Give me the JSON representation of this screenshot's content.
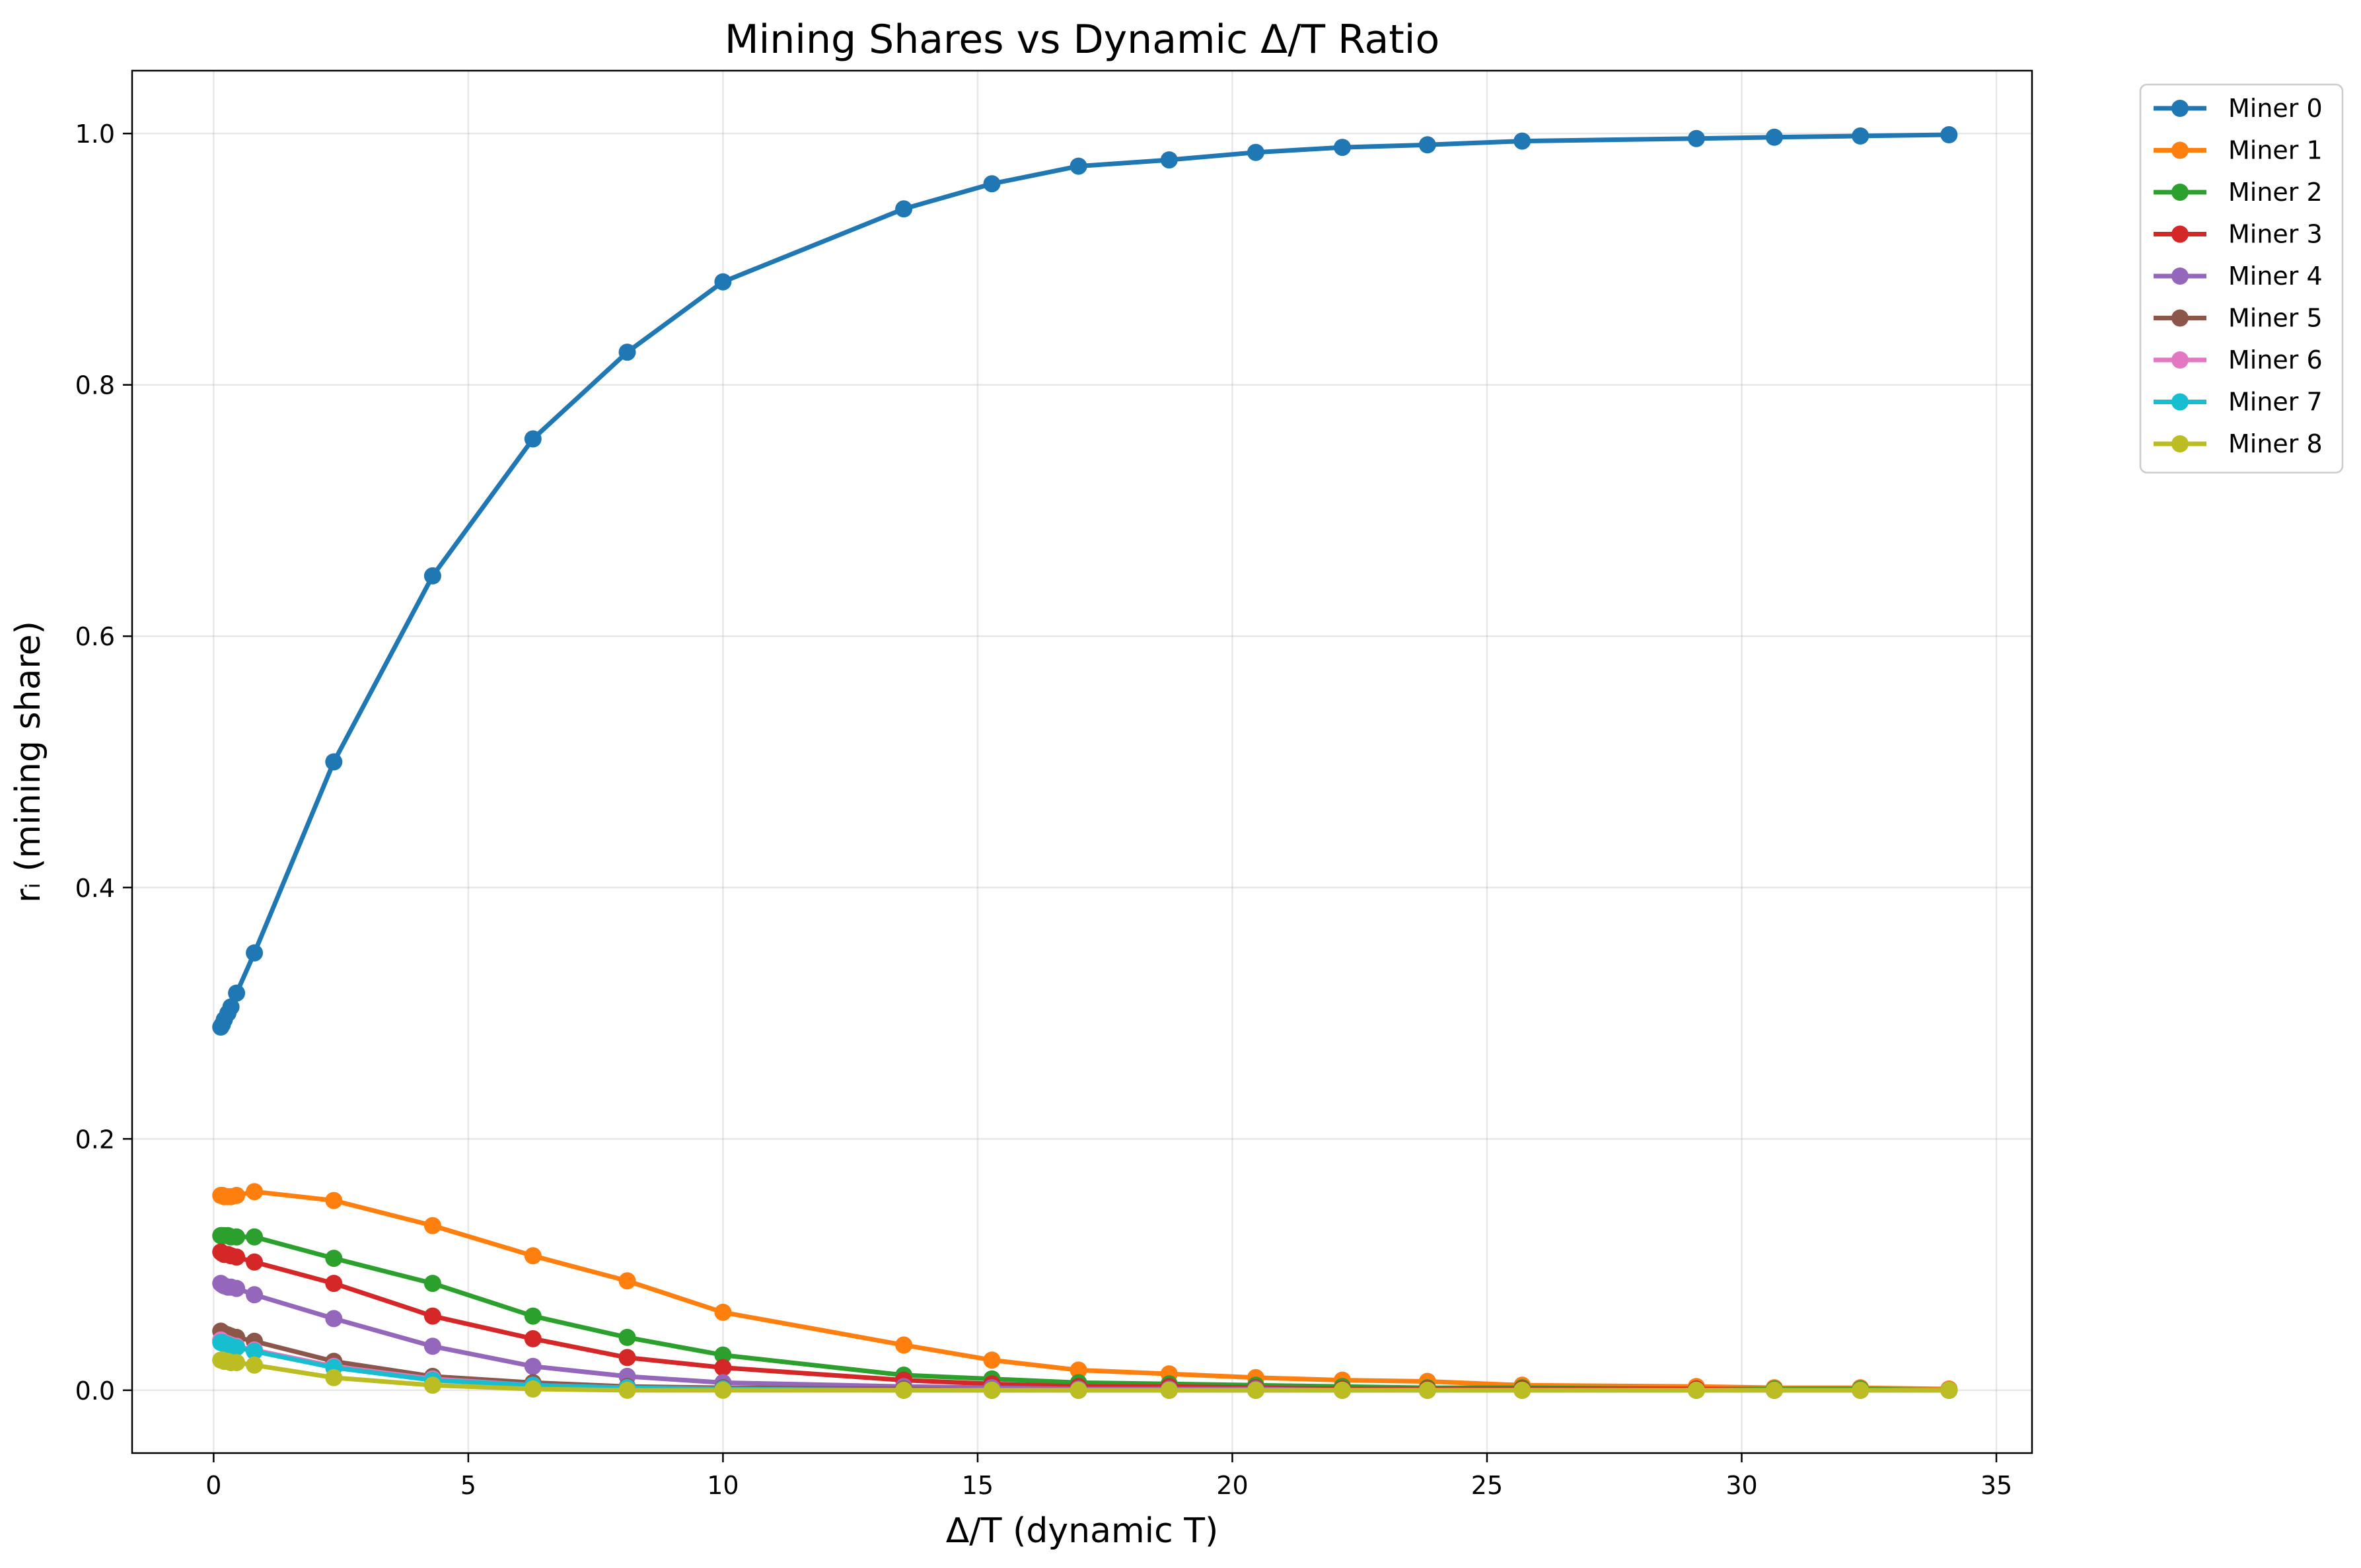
{
  "chart_data": {
    "type": "line",
    "title": "Mining Shares vs Dynamic Δ/T Ratio",
    "xlabel": "Δ/T (dynamic T)",
    "ylabel": "rᵢ (mining share)",
    "xlim": [
      -1.6,
      35.7
    ],
    "ylim": [
      -0.05,
      1.05
    ],
    "xticks": [
      0,
      5,
      10,
      15,
      20,
      25,
      30,
      35
    ],
    "xtick_labels": [
      "0",
      "5",
      "10",
      "15",
      "20",
      "25",
      "30",
      "35"
    ],
    "yticks": [
      0.0,
      0.2,
      0.4,
      0.6,
      0.8,
      1.0
    ],
    "ytick_labels": [
      "0.0",
      "0.2",
      "0.4",
      "0.6",
      "0.8",
      "1.0"
    ],
    "grid": true,
    "legend_position": "outside-top-right",
    "x": [
      0.14,
      0.17,
      0.21,
      0.28,
      0.34,
      0.45,
      0.8,
      2.36,
      4.3,
      6.27,
      8.12,
      10.0,
      13.55,
      15.28,
      16.98,
      18.76,
      20.46,
      22.16,
      23.83,
      25.69,
      29.11,
      30.64,
      32.33,
      34.07
    ],
    "series": [
      {
        "name": "Miner 0",
        "color": "#1f77b4",
        "values": [
          0.289,
          0.291,
          0.295,
          0.3,
          0.305,
          0.316,
          0.348,
          0.5,
          0.648,
          0.757,
          0.826,
          0.882,
          0.94,
          0.96,
          0.974,
          0.979,
          0.985,
          0.989,
          0.991,
          0.994,
          0.996,
          0.997,
          0.998,
          0.999
        ]
      },
      {
        "name": "Miner 1",
        "color": "#ff7f0e",
        "values": [
          0.155,
          0.155,
          0.154,
          0.154,
          0.154,
          0.155,
          0.158,
          0.151,
          0.131,
          0.107,
          0.087,
          0.062,
          0.036,
          0.024,
          0.016,
          0.013,
          0.01,
          0.008,
          0.007,
          0.004,
          0.003,
          0.002,
          0.002,
          0.001
        ]
      },
      {
        "name": "Miner 2",
        "color": "#2ca02c",
        "values": [
          0.123,
          0.123,
          0.123,
          0.123,
          0.122,
          0.122,
          0.122,
          0.105,
          0.085,
          0.059,
          0.042,
          0.028,
          0.012,
          0.009,
          0.006,
          0.005,
          0.004,
          0.003,
          0.002,
          0.002,
          0.001,
          0.001,
          0.001,
          0.0
        ]
      },
      {
        "name": "Miner 3",
        "color": "#d62728",
        "values": [
          0.11,
          0.109,
          0.108,
          0.108,
          0.107,
          0.106,
          0.102,
          0.085,
          0.059,
          0.041,
          0.026,
          0.018,
          0.008,
          0.005,
          0.003,
          0.003,
          0.002,
          0.001,
          0.001,
          0.001,
          0.001,
          0.0,
          0.0,
          0.0
        ]
      },
      {
        "name": "Miner 4",
        "color": "#9467bd",
        "values": [
          0.085,
          0.084,
          0.083,
          0.082,
          0.082,
          0.081,
          0.076,
          0.057,
          0.035,
          0.019,
          0.011,
          0.006,
          0.003,
          0.002,
          0.001,
          0.001,
          0.001,
          0.0,
          0.0,
          0.0,
          0.0,
          0.0,
          0.0,
          0.0
        ]
      },
      {
        "name": "Miner 5",
        "color": "#8c564b",
        "values": [
          0.047,
          0.046,
          0.045,
          0.044,
          0.043,
          0.042,
          0.039,
          0.023,
          0.011,
          0.006,
          0.003,
          0.002,
          0.001,
          0.0,
          0.0,
          0.0,
          0.0,
          0.0,
          0.0,
          0.0,
          0.0,
          0.0,
          0.0,
          0.0
        ]
      },
      {
        "name": "Miner 6",
        "color": "#e377c2",
        "values": [
          0.04,
          0.039,
          0.038,
          0.037,
          0.036,
          0.035,
          0.032,
          0.019,
          0.009,
          0.004,
          0.002,
          0.001,
          0.0,
          0.0,
          0.0,
          0.0,
          0.0,
          0.0,
          0.0,
          0.0,
          0.0,
          0.0,
          0.0,
          0.0
        ]
      },
      {
        "name": "Miner 7",
        "color": "#17becf",
        "values": [
          0.038,
          0.038,
          0.037,
          0.036,
          0.035,
          0.034,
          0.031,
          0.018,
          0.008,
          0.004,
          0.002,
          0.001,
          0.0,
          0.0,
          0.0,
          0.0,
          0.0,
          0.0,
          0.0,
          0.0,
          0.0,
          0.0,
          0.0,
          0.0
        ]
      },
      {
        "name": "Miner 8",
        "color": "#bcbd22",
        "values": [
          0.024,
          0.024,
          0.023,
          0.023,
          0.022,
          0.022,
          0.02,
          0.01,
          0.004,
          0.001,
          0.0,
          0.0,
          0.0,
          0.0,
          0.0,
          0.0,
          0.0,
          0.0,
          0.0,
          0.0,
          0.0,
          0.0,
          0.0,
          0.0
        ]
      }
    ]
  }
}
